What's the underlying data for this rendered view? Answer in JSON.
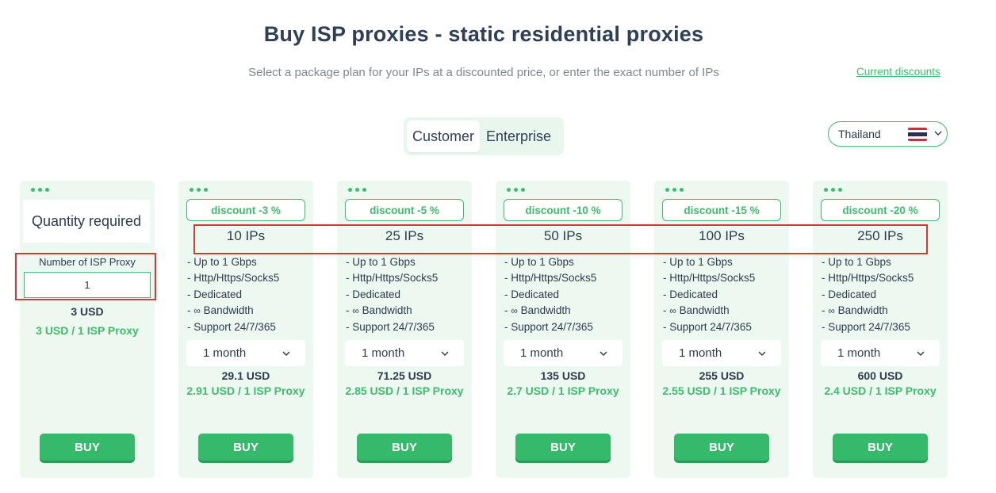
{
  "header": {
    "title": "Buy ISP proxies - static residential proxies",
    "subtitle": "Select a package plan for your IPs at a discounted price, or enter the exact number of IPs",
    "discounts_link": "Current discounts"
  },
  "toggle": {
    "options": [
      "Customer",
      "Enterprise"
    ],
    "selected": "Customer"
  },
  "country_select": {
    "value": "Thailand",
    "icon": "thailand-flag-icon"
  },
  "colors": {
    "accent": "#3bbd6c",
    "card_bg": "#ecf8f0",
    "highlight": "#e0332e",
    "text": "#2f3b4c"
  },
  "custom_card": {
    "heading": "Quantity required",
    "input_label": "Number of ISP Proxy",
    "input_value": "1",
    "total": "3 USD",
    "unit_price": "3 USD / 1 ISP Proxy",
    "buy_label": "BUY"
  },
  "features": [
    "- Up to 1 Gbps",
    "- Http/Https/Socks5",
    "- Dedicated",
    "Bandwidth",
    "- Support 24/7/365"
  ],
  "bandwidth_prefix": "- ",
  "infinity_symbol": "∞",
  "plans": [
    {
      "discount": "discount -3 %",
      "ips": "10 IPs",
      "period": "1 month",
      "total": "29.1 USD",
      "unit_price": "2.91 USD / 1 ISP Proxy",
      "buy_label": "BUY"
    },
    {
      "discount": "discount -5 %",
      "ips": "25 IPs",
      "period": "1 month",
      "total": "71.25 USD",
      "unit_price": "2.85 USD / 1 ISP Proxy",
      "buy_label": "BUY"
    },
    {
      "discount": "discount -10 %",
      "ips": "50 IPs",
      "period": "1 month",
      "total": "135 USD",
      "unit_price": "2.7 USD / 1 ISP Proxy",
      "buy_label": "BUY"
    },
    {
      "discount": "discount -15 %",
      "ips": "100 IPs",
      "period": "1 month",
      "total": "255 USD",
      "unit_price": "2.55 USD / 1 ISP Proxy",
      "buy_label": "BUY"
    },
    {
      "discount": "discount -20 %",
      "ips": "250 IPs",
      "period": "1 month",
      "total": "600 USD",
      "unit_price": "2.4 USD / 1 ISP Proxy",
      "buy_label": "BUY"
    }
  ]
}
